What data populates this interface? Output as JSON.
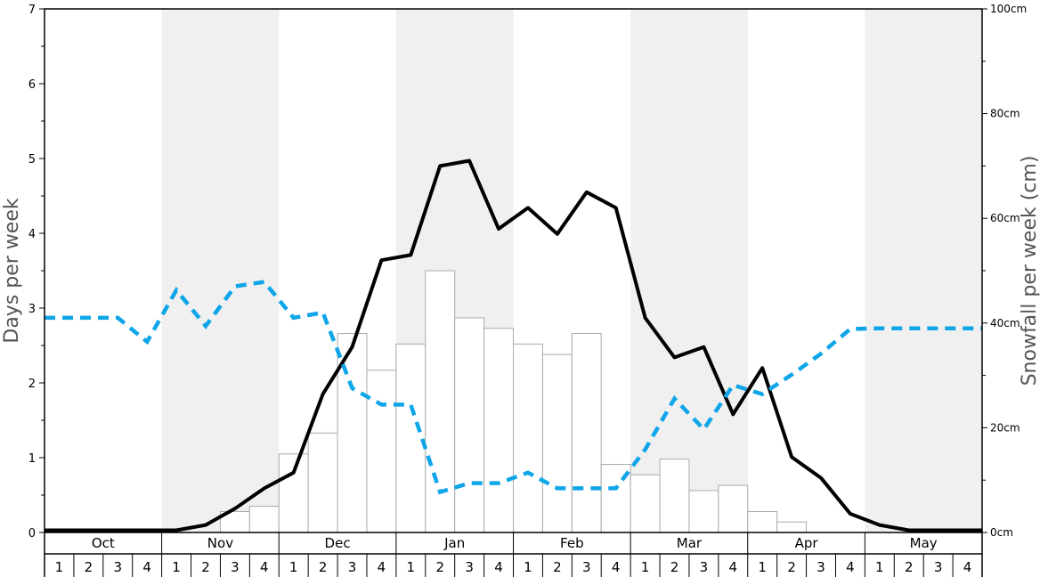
{
  "chart_data": {
    "type": "bar+line",
    "left_axis": {
      "label": "Days per week",
      "ylim": [
        0,
        7
      ],
      "ticks": [
        "0",
        "1",
        "2",
        "3",
        "4",
        "5",
        "6",
        "7"
      ]
    },
    "right_axis": {
      "label": "Snowfall per week (cm)",
      "ylim": [
        0,
        100
      ],
      "ticks": [
        "0cm",
        "20cm",
        "40cm",
        "60cm",
        "80cm",
        "100cm"
      ]
    },
    "months": [
      "Oct",
      "Nov",
      "Dec",
      "Jan",
      "Feb",
      "Mar",
      "Apr",
      "May"
    ],
    "weeks": [
      "1",
      "2",
      "3",
      "4"
    ],
    "shaded_months": [
      "Nov",
      "Jan",
      "Mar",
      "May"
    ],
    "series": [
      {
        "kind": "bar",
        "axis": "right",
        "values": [
          0,
          0,
          0,
          0,
          0,
          0,
          4,
          5,
          15,
          19,
          38,
          31,
          36,
          50,
          41,
          39,
          36,
          34,
          38,
          13,
          11,
          14,
          8,
          9,
          4,
          2,
          0,
          0,
          0,
          0,
          0,
          0
        ]
      },
      {
        "kind": "line",
        "axis": "left",
        "color": "#000000",
        "style": "solid",
        "values": [
          0.03,
          0.03,
          0.03,
          0.03,
          0.03,
          0.1,
          0.32,
          0.59,
          0.8,
          1.85,
          2.48,
          3.64,
          3.71,
          4.9,
          4.97,
          4.06,
          4.34,
          3.99,
          4.55,
          4.34,
          2.87,
          2.34,
          2.48,
          1.58,
          2.2,
          1.01,
          0.73,
          0.25,
          0.1,
          0.03,
          0.03,
          0.03
        ]
      },
      {
        "kind": "line",
        "axis": "left",
        "color": "#0ea5e9",
        "style": "dashed",
        "values": [
          2.87,
          2.87,
          2.87,
          2.55,
          3.24,
          2.76,
          3.29,
          3.35,
          2.87,
          2.94,
          1.93,
          1.71,
          1.71,
          0.54,
          0.66,
          0.66,
          0.8,
          0.59,
          0.59,
          0.59,
          1.11,
          1.79,
          1.38,
          1.97,
          1.85,
          2.11,
          2.39,
          2.72,
          2.73,
          2.73,
          2.73,
          2.73
        ]
      }
    ]
  }
}
